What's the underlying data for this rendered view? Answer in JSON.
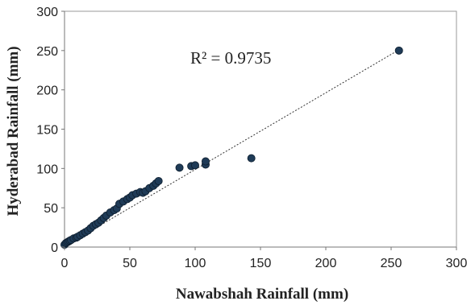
{
  "chart_data": {
    "type": "scatter",
    "title": "",
    "xlabel": "Nawabshah Rainfall (mm)",
    "ylabel": "Hyderabad Rainfall (mm)",
    "xlim": [
      0,
      300
    ],
    "ylim": [
      0,
      300
    ],
    "xticks": [
      "0",
      "50",
      "100",
      "150",
      "200",
      "250",
      "300"
    ],
    "yticks": [
      "0",
      "50",
      "100",
      "150",
      "200",
      "250",
      "300"
    ],
    "grid": false,
    "legend": "none",
    "marker_color": "#1f3b57",
    "annotation": "R² = 0.9735",
    "trendline": {
      "x": [
        0,
        256
      ],
      "y": [
        1,
        251
      ]
    },
    "series": [
      {
        "x": [
          0,
          1,
          2,
          3,
          4,
          5,
          7,
          9,
          10,
          12,
          14,
          16,
          18,
          20,
          22,
          24,
          26,
          28,
          30,
          32,
          35,
          38,
          40,
          42,
          45,
          48,
          50,
          52,
          55,
          58,
          60,
          62,
          65,
          68,
          70,
          72,
          88,
          97,
          100,
          108,
          108,
          143,
          256
        ],
        "y": [
          3,
          5,
          6,
          7,
          8,
          9,
          11,
          12,
          13,
          15,
          17,
          19,
          21,
          24,
          27,
          29,
          31,
          34,
          37,
          40,
          44,
          47,
          49,
          55,
          58,
          61,
          63,
          66,
          68,
          70,
          69,
          71,
          75,
          78,
          81,
          84,
          101,
          103,
          104,
          105,
          109,
          113,
          250
        ]
      }
    ]
  }
}
